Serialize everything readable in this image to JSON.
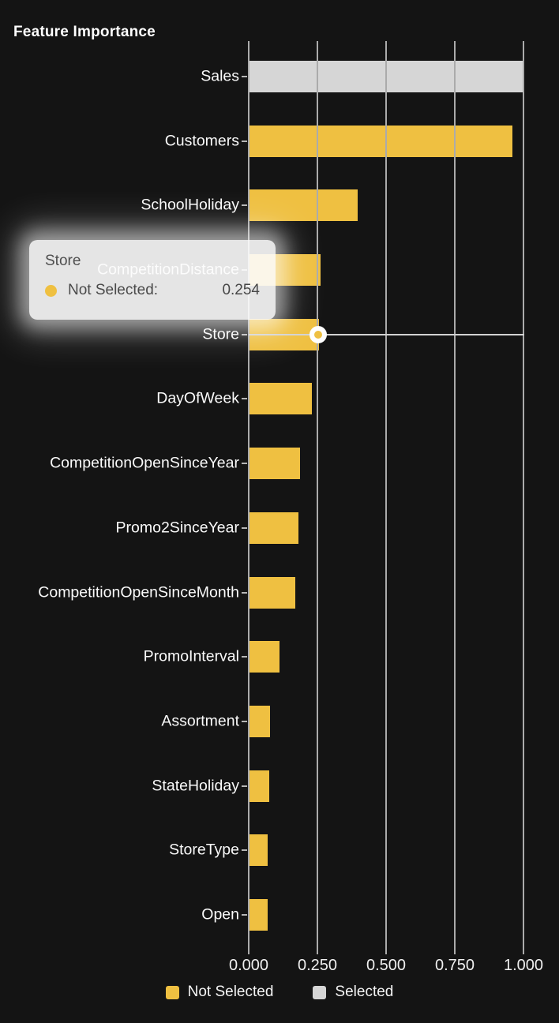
{
  "title": "Feature Importance",
  "colors": {
    "background": "#141414",
    "bar_not_selected": "#efc041",
    "bar_selected": "#d6d6d6",
    "grid": "#ababab",
    "crosshair": "#d2d2d2",
    "text": "#f5f5f5"
  },
  "legend": {
    "items": [
      {
        "label": "Not Selected",
        "color": "#efc041"
      },
      {
        "label": "Selected",
        "color": "#d6d6d6"
      }
    ]
  },
  "tooltip": {
    "title": "Store",
    "series_label": "Not Selected:",
    "value": "0.254",
    "marker_color": "#efc041"
  },
  "chart_data": {
    "type": "bar",
    "orientation": "horizontal",
    "title": "Feature Importance",
    "xlabel": "",
    "ylabel": "",
    "xlim": [
      0,
      1.0
    ],
    "grid": true,
    "legend_position": "bottom",
    "x_ticks": [
      0,
      0.25,
      0.5,
      0.75,
      1.0
    ],
    "x_tick_labels": [
      "0.000",
      "0.250",
      "0.500",
      "0.750",
      "1.000"
    ],
    "categories": [
      "Sales",
      "Customers",
      "SchoolHoliday",
      "CompetitionDistance",
      "Store",
      "DayOfWeek",
      "CompetitionOpenSinceYear",
      "Promo2SinceYear",
      "CompetitionOpenSinceMonth",
      "PromoInterval",
      "Assortment",
      "StateHoliday",
      "StoreType",
      "Open"
    ],
    "rows": [
      {
        "label": "Sales",
        "value": 1.0,
        "series": "Selected"
      },
      {
        "label": "Customers",
        "value": 0.957,
        "series": "Not Selected"
      },
      {
        "label": "SchoolHoliday",
        "value": 0.395,
        "series": "Not Selected"
      },
      {
        "label": "CompetitionDistance",
        "value": 0.258,
        "series": "Not Selected"
      },
      {
        "label": "Store",
        "value": 0.254,
        "series": "Not Selected"
      },
      {
        "label": "DayOfWeek",
        "value": 0.227,
        "series": "Not Selected"
      },
      {
        "label": "CompetitionOpenSinceYear",
        "value": 0.185,
        "series": "Not Selected"
      },
      {
        "label": "Promo2SinceYear",
        "value": 0.178,
        "series": "Not Selected"
      },
      {
        "label": "CompetitionOpenSinceMonth",
        "value": 0.167,
        "series": "Not Selected"
      },
      {
        "label": "PromoInterval",
        "value": 0.11,
        "series": "Not Selected"
      },
      {
        "label": "Assortment",
        "value": 0.075,
        "series": "Not Selected"
      },
      {
        "label": "StateHoliday",
        "value": 0.072,
        "series": "Not Selected"
      },
      {
        "label": "StoreType",
        "value": 0.066,
        "series": "Not Selected"
      },
      {
        "label": "Open",
        "value": 0.067,
        "series": "Not Selected"
      }
    ],
    "hover": {
      "category": "Store",
      "series": "Not Selected",
      "value": 0.254
    }
  }
}
